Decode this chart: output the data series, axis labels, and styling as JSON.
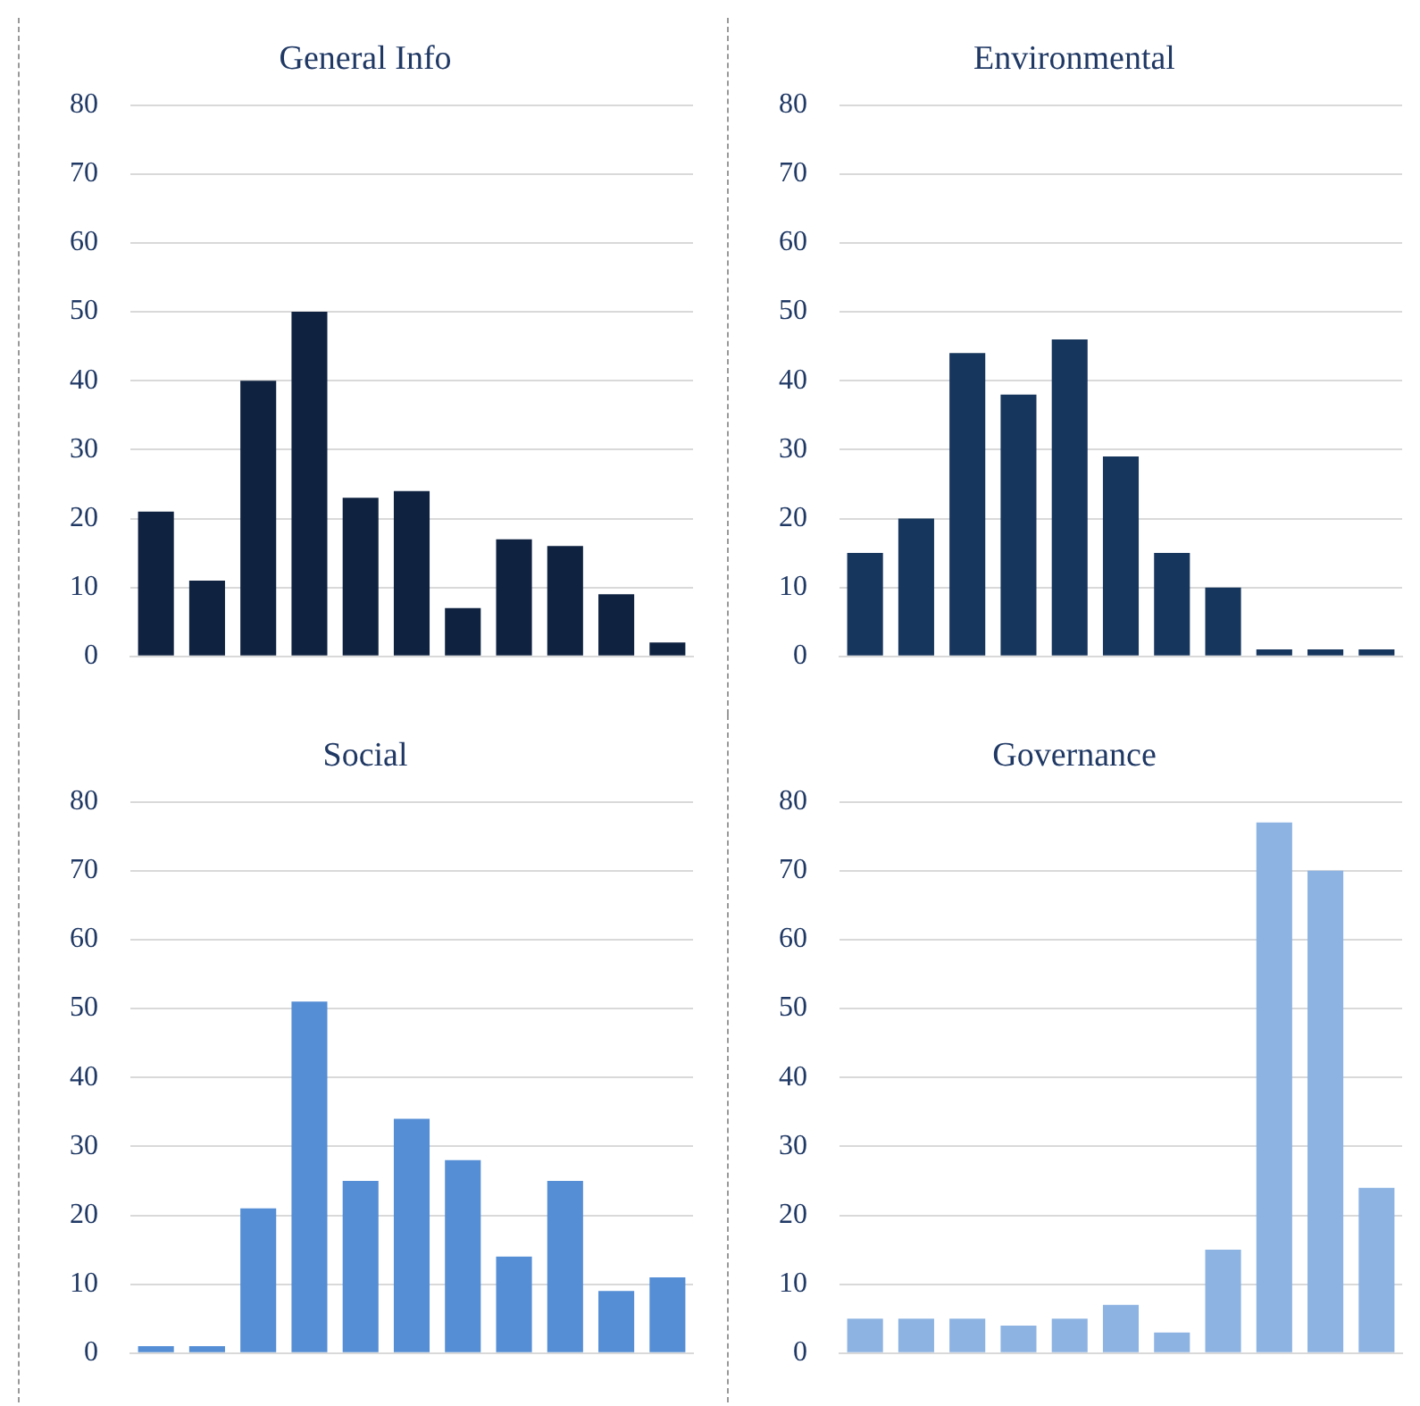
{
  "chart_data": [
    {
      "type": "bar",
      "title": "General Info",
      "categories": [
        null,
        null,
        null,
        null,
        null,
        null,
        null,
        null,
        null,
        null,
        null
      ],
      "values": [
        21,
        11,
        40,
        50,
        23,
        24,
        7,
        17,
        16,
        9,
        2
      ],
      "color": "#0f2341",
      "ylim": [
        0,
        80
      ],
      "yticks": [
        0,
        10,
        20,
        30,
        40,
        50,
        60,
        70,
        80
      ],
      "grid": "y",
      "tick_labels": "y"
    },
    {
      "type": "bar",
      "title": "Environmental",
      "categories": [
        null,
        null,
        null,
        null,
        null,
        null,
        null,
        null,
        null,
        null,
        null
      ],
      "values": [
        15,
        20,
        44,
        38,
        46,
        29,
        15,
        10,
        1,
        1,
        1
      ],
      "color": "#17365d",
      "ylim": [
        0,
        80
      ],
      "yticks": [
        0,
        10,
        20,
        30,
        40,
        50,
        60,
        70,
        80
      ],
      "grid": "y",
      "tick_labels": "y"
    },
    {
      "type": "bar",
      "title": "Social",
      "categories": [
        null,
        null,
        null,
        null,
        null,
        null,
        null,
        null,
        null,
        null,
        null
      ],
      "values": [
        1,
        1,
        21,
        51,
        25,
        34,
        28,
        14,
        25,
        9,
        11
      ],
      "color": "#558ed5",
      "ylim": [
        0,
        80
      ],
      "yticks": [
        0,
        10,
        20,
        30,
        40,
        50,
        60,
        70,
        80
      ],
      "grid": "y",
      "tick_labels": "y"
    },
    {
      "type": "bar",
      "title": "Governance",
      "categories": [
        null,
        null,
        null,
        null,
        null,
        null,
        null,
        null,
        null,
        null,
        null
      ],
      "values": [
        5,
        5,
        5,
        4,
        5,
        7,
        3,
        15,
        77,
        70,
        24
      ],
      "color": "#8db3e2",
      "ylim": [
        0,
        80
      ],
      "yticks": [
        0,
        10,
        20,
        30,
        40,
        50,
        60,
        70,
        80
      ],
      "grid": "y",
      "tick_labels": "y"
    }
  ]
}
